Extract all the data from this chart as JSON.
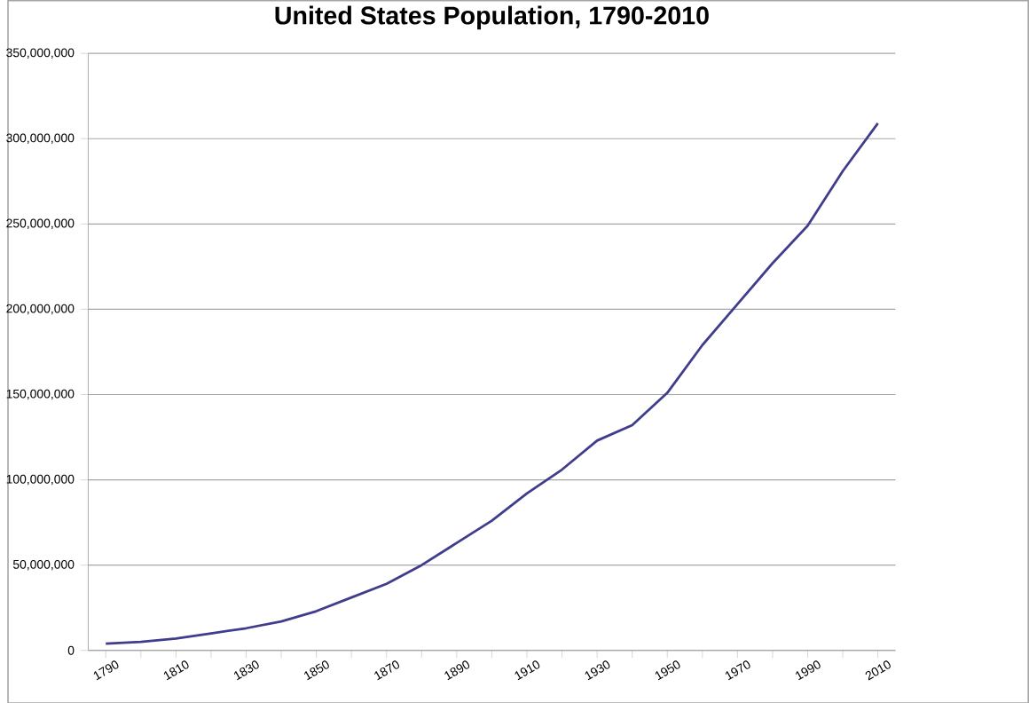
{
  "chart_data": {
    "type": "line",
    "title": "United States Population, 1790-2010",
    "categories": [
      "1790",
      null,
      "1810",
      null,
      "1830",
      null,
      "1850",
      null,
      "1870",
      null,
      "1890",
      null,
      "1910",
      null,
      "1930",
      null,
      "1950",
      null,
      "1970",
      null,
      "1990",
      null,
      "2010"
    ],
    "series": [
      {
        "color": "#3f3d8c",
        "values": [
          4000000,
          5000000,
          7000000,
          10000000,
          13000000,
          17000000,
          23000000,
          31000000,
          39000000,
          50000000,
          63000000,
          76000000,
          92000000,
          106000000,
          123000000,
          132000000,
          151000000,
          179000000,
          203000000,
          227000000,
          249000000,
          281000000,
          309000000
        ]
      }
    ],
    "ylim": [
      0,
      350000000
    ],
    "yticks": [
      {
        "value": 0,
        "label": "0"
      },
      {
        "value": 50000000,
        "label": "50,000,000"
      },
      {
        "value": 100000000,
        "label": "100,000,000"
      },
      {
        "value": 150000000,
        "label": "150,000,000"
      },
      {
        "value": 200000000,
        "label": "200,000,000"
      },
      {
        "value": 250000000,
        "label": "250,000,000"
      },
      {
        "value": 300000000,
        "label": "300,000,000"
      },
      {
        "value": 350000000,
        "label": "350,000,000"
      }
    ],
    "grid": "y",
    "marker": "none",
    "line_style": "solid"
  }
}
